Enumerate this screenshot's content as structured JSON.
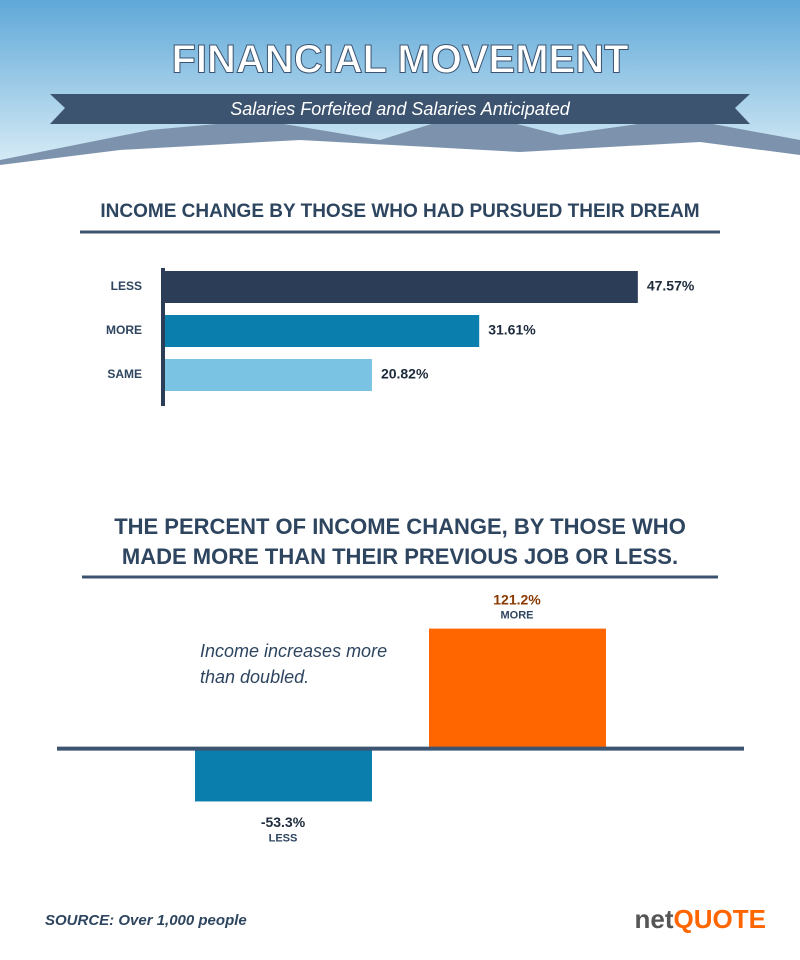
{
  "header": {
    "title": "FINANCIAL MOVEMENT",
    "subtitle": "Salaries Forfeited and Salaries Anticipated"
  },
  "chart_data": [
    {
      "type": "hbar",
      "title": "INCOME CHANGE BY THOSE WHO HAD PURSUED THEIR DREAM",
      "categories": [
        "LESS",
        "MORE",
        "SAME"
      ],
      "values": [
        47.57,
        31.61,
        20.82
      ],
      "value_labels": [
        "47.57%",
        "31.61%",
        "20.82%"
      ],
      "colors": [
        "#2b3d57",
        "#0a7fae",
        "#7bc3e3"
      ],
      "xlim": [
        0,
        50
      ]
    },
    {
      "type": "bar",
      "title": "THE PERCENT OF INCOME CHANGE, BY THOSE WHO MADE MORE THAN THEIR PREVIOUS JOB OR LESS.",
      "categories": [
        "LESS",
        "MORE"
      ],
      "values": [
        -53.3,
        121.2
      ],
      "value_labels": [
        "-53.3%",
        "121.2%"
      ],
      "colors": [
        "#0a7fae",
        "#ff6600"
      ],
      "ylim": [
        -70,
        140
      ],
      "annotation": "Income increases more than doubled."
    }
  ],
  "footer": {
    "source": "SOURCE: Over 1,000 people",
    "logo_left": "net",
    "logo_right": "QUOTE"
  }
}
